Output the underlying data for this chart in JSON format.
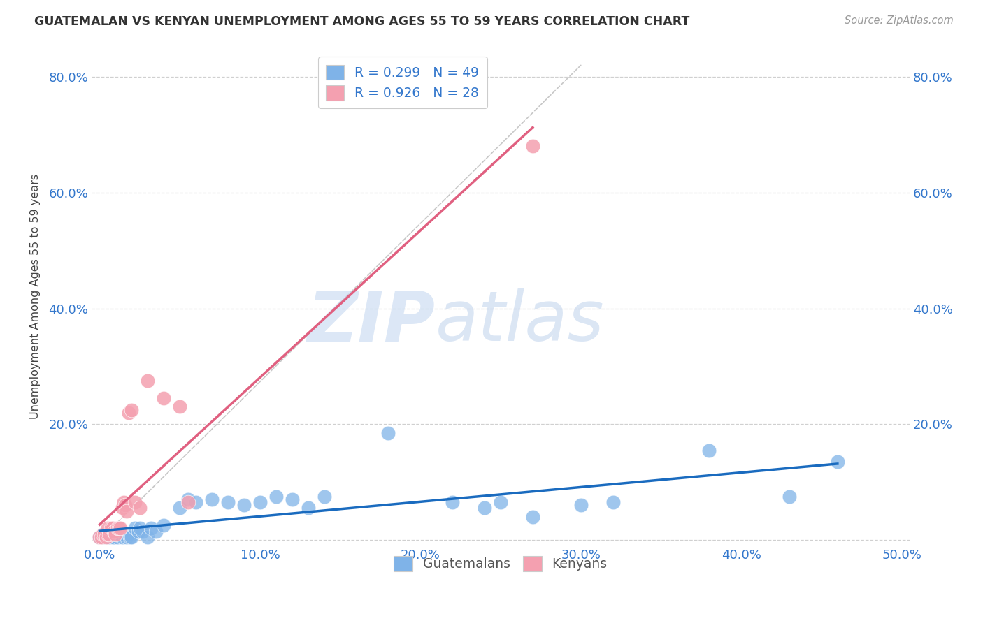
{
  "title": "GUATEMALAN VS KENYAN UNEMPLOYMENT AMONG AGES 55 TO 59 YEARS CORRELATION CHART",
  "source": "Source: ZipAtlas.com",
  "xlabel": "",
  "ylabel": "Unemployment Among Ages 55 to 59 years",
  "xlim": [
    -0.005,
    0.505
  ],
  "ylim": [
    -0.01,
    0.85
  ],
  "xticks": [
    0.0,
    0.1,
    0.2,
    0.3,
    0.4,
    0.5
  ],
  "yticks": [
    0.0,
    0.2,
    0.4,
    0.6,
    0.8
  ],
  "ytick_labels": [
    "",
    "20.0%",
    "40.0%",
    "60.0%",
    "80.0%"
  ],
  "xtick_labels": [
    "0.0%",
    "10.0%",
    "20.0%",
    "30.0%",
    "40.0%",
    "50.0%"
  ],
  "blue_color": "#7fb3e8",
  "pink_color": "#f4a0b0",
  "blue_line_color": "#1a6bbf",
  "pink_line_color": "#e06080",
  "watermark_zip": "ZIP",
  "watermark_atlas": "atlas",
  "guatemalan_x": [
    0.0,
    0.002,
    0.003,
    0.004,
    0.005,
    0.006,
    0.007,
    0.008,
    0.009,
    0.01,
    0.011,
    0.012,
    0.013,
    0.014,
    0.015,
    0.016,
    0.017,
    0.018,
    0.019,
    0.02,
    0.022,
    0.024,
    0.025,
    0.027,
    0.03,
    0.032,
    0.035,
    0.04,
    0.05,
    0.055,
    0.06,
    0.07,
    0.08,
    0.09,
    0.1,
    0.11,
    0.12,
    0.13,
    0.14,
    0.18,
    0.22,
    0.24,
    0.25,
    0.27,
    0.3,
    0.32,
    0.38,
    0.43,
    0.46
  ],
  "guatemalan_y": [
    0.005,
    0.005,
    0.005,
    0.008,
    0.005,
    0.005,
    0.01,
    0.005,
    0.005,
    0.01,
    0.005,
    0.008,
    0.01,
    0.005,
    0.01,
    0.01,
    0.005,
    0.01,
    0.005,
    0.005,
    0.02,
    0.015,
    0.02,
    0.015,
    0.005,
    0.02,
    0.015,
    0.025,
    0.055,
    0.07,
    0.065,
    0.07,
    0.065,
    0.06,
    0.065,
    0.075,
    0.07,
    0.055,
    0.075,
    0.185,
    0.065,
    0.055,
    0.065,
    0.04,
    0.06,
    0.065,
    0.155,
    0.075,
    0.135
  ],
  "kenyan_x": [
    0.0,
    0.001,
    0.002,
    0.003,
    0.004,
    0.005,
    0.005,
    0.006,
    0.007,
    0.008,
    0.009,
    0.01,
    0.011,
    0.012,
    0.013,
    0.014,
    0.015,
    0.016,
    0.017,
    0.018,
    0.02,
    0.022,
    0.025,
    0.03,
    0.04,
    0.05,
    0.055,
    0.27
  ],
  "kenyan_y": [
    0.005,
    0.005,
    0.01,
    0.01,
    0.005,
    0.01,
    0.02,
    0.01,
    0.02,
    0.02,
    0.015,
    0.01,
    0.02,
    0.02,
    0.02,
    0.055,
    0.065,
    0.06,
    0.05,
    0.22,
    0.225,
    0.065,
    0.055,
    0.275,
    0.245,
    0.23,
    0.065,
    0.68
  ],
  "background_color": "#ffffff",
  "grid_color": "#d0d0d0"
}
